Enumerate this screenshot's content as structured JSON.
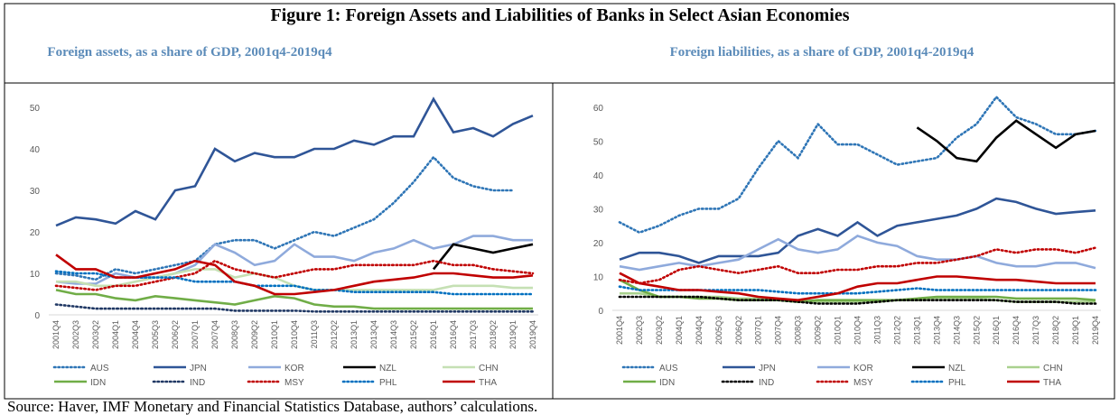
{
  "title": "Figure 1: Foreign Assets and Liabilities of Banks in Select Asian Economies",
  "source": "Source: Haver, IMF Monetary and Financial Statistics Database, authors’ calculations.",
  "chart_data": [
    {
      "type": "line",
      "title": "Foreign assets, as a share of GDP, 2001q4-2019q4",
      "categories": [
        "2001Q4",
        "2002Q3",
        "2003Q2",
        "2004Q1",
        "2004Q4",
        "2005Q3",
        "2006Q2",
        "2007Q1",
        "2007Q4",
        "2008Q3",
        "2009Q2",
        "2010Q1",
        "2010Q4",
        "2011Q3",
        "2012Q2",
        "2013Q1",
        "2013Q4",
        "2014Q3",
        "2015Q2",
        "2016Q1",
        "2016Q4",
        "2017Q3",
        "2018Q2",
        "2019Q1",
        "2019Q4"
      ],
      "ylim": [
        0,
        55
      ],
      "yticks": [
        0,
        10,
        20,
        30,
        40,
        50
      ],
      "series": [
        {
          "name": "AUS",
          "color": "#2e75b6",
          "style": "dotted",
          "values": [
            10,
            9.5,
            8.5,
            11,
            10,
            11,
            12,
            13,
            17,
            18,
            18,
            16,
            18,
            20,
            19,
            21,
            23,
            27,
            32,
            38,
            33,
            31,
            30,
            30,
            null
          ]
        },
        {
          "name": "JPN",
          "color": "#2f5597",
          "style": "solid",
          "values": [
            21.5,
            23.5,
            23,
            22,
            25,
            23,
            30,
            31,
            40,
            37,
            39,
            38,
            38,
            40,
            40,
            42,
            41,
            43,
            43,
            52,
            44,
            45,
            43,
            46,
            48
          ]
        },
        {
          "name": "KOR",
          "color": "#8faadc",
          "style": "solid",
          "values": [
            8,
            7.5,
            7.5,
            10,
            9,
            9,
            10,
            12,
            17,
            15,
            12,
            13,
            17,
            14,
            14,
            13,
            15,
            16,
            18,
            16,
            17,
            19,
            19,
            18,
            18
          ]
        },
        {
          "name": "NZL",
          "color": "#000000",
          "style": "solid",
          "values": [
            null,
            null,
            null,
            null,
            null,
            null,
            null,
            null,
            null,
            null,
            null,
            null,
            null,
            null,
            null,
            null,
            null,
            null,
            null,
            11,
            17,
            16,
            15,
            16,
            17
          ]
        },
        {
          "name": "CHN",
          "color": "#c5e0b4",
          "style": "solid",
          "values": [
            8,
            8,
            7,
            7,
            8,
            9,
            10,
            11,
            11,
            9,
            10,
            9,
            7,
            6,
            6,
            6,
            6,
            6,
            6,
            6,
            7,
            7,
            7,
            6.5,
            6.5
          ]
        },
        {
          "name": "IDN",
          "color": "#70ad47",
          "style": "solid",
          "values": [
            6,
            5,
            5,
            4,
            3.5,
            4.5,
            4,
            3.5,
            3,
            2.5,
            3.5,
            4.5,
            4,
            2.5,
            2,
            2,
            1.5,
            1.5,
            1.5,
            1.5,
            1.5,
            1.5,
            1.5,
            1.5,
            1.5
          ]
        },
        {
          "name": "IND",
          "color": "#203864",
          "style": "dotted",
          "values": [
            2.5,
            2,
            1.5,
            1.5,
            1.5,
            1.5,
            1.5,
            1.5,
            1.5,
            1,
            1,
            1,
            1,
            0.8,
            0.8,
            0.8,
            0.8,
            0.8,
            0.8,
            0.8,
            0.8,
            0.8,
            0.8,
            0.8,
            0.8
          ]
        },
        {
          "name": "MSY",
          "color": "#c00000",
          "style": "dotted",
          "values": [
            7,
            6.5,
            6,
            7,
            7,
            8,
            9,
            10,
            13,
            11,
            10,
            9,
            10,
            11,
            11,
            12,
            12,
            12,
            12,
            13,
            12,
            12,
            11,
            10.5,
            10
          ]
        },
        {
          "name": "PHL",
          "color": "#0070c0",
          "style": "dotted",
          "values": [
            10.5,
            10,
            10,
            9,
            9,
            9,
            9,
            8,
            8,
            8,
            7,
            7,
            7,
            6,
            6,
            5.5,
            5.5,
            5.5,
            5.5,
            5.5,
            5,
            5,
            5,
            5,
            5
          ]
        },
        {
          "name": "THA",
          "color": "#c00000",
          "style": "solid",
          "values": [
            14.5,
            11,
            11,
            9,
            9,
            10,
            11,
            13,
            12,
            8,
            7,
            5,
            5,
            5.5,
            6,
            7,
            8,
            8.5,
            9,
            10,
            10,
            9.5,
            9,
            9,
            9.5
          ]
        }
      ]
    },
    {
      "type": "line",
      "title": "Foreign liabilities, as a share of GDP, 2001q4-2019q4",
      "categories": [
        "2001Q4",
        "2002Q3",
        "2003Q2",
        "2004Q1",
        "2004Q4",
        "2005Q3",
        "2006Q2",
        "2007Q1",
        "2007Q4",
        "2008Q3",
        "2009Q2",
        "2010Q1",
        "2010Q4",
        "2011Q3",
        "2012Q2",
        "2013Q1",
        "2013Q4",
        "2014Q3",
        "2015Q2",
        "2016Q1",
        "2016Q4",
        "2017Q3",
        "2018Q2",
        "2019Q1",
        "2019Q4"
      ],
      "ylim": [
        0,
        65
      ],
      "yticks": [
        0,
        10,
        20,
        30,
        40,
        50,
        60
      ],
      "series": [
        {
          "name": "AUS",
          "color": "#2e75b6",
          "style": "dotted",
          "values": [
            26,
            23,
            25,
            28,
            30,
            30,
            33,
            42,
            50,
            45,
            55,
            49,
            49,
            46,
            43,
            44,
            45,
            51,
            55,
            63,
            57,
            55,
            52,
            52,
            53
          ]
        },
        {
          "name": "JPN",
          "color": "#2f5597",
          "style": "solid",
          "values": [
            15,
            17,
            17,
            16,
            14,
            16,
            16,
            16,
            17,
            22,
            24,
            22,
            26,
            22,
            25,
            26,
            27,
            28,
            30,
            33,
            32,
            30,
            28.5,
            29,
            29.5
          ]
        },
        {
          "name": "KOR",
          "color": "#8faadc",
          "style": "solid",
          "values": [
            13,
            12,
            13,
            14,
            13,
            14,
            15,
            18,
            21,
            18,
            17,
            18,
            22,
            20,
            19,
            16,
            15,
            15,
            16,
            14,
            13,
            13,
            14,
            14,
            12.5
          ]
        },
        {
          "name": "NZL",
          "color": "#000000",
          "style": "solid",
          "values": [
            null,
            null,
            null,
            null,
            null,
            null,
            null,
            null,
            null,
            null,
            null,
            null,
            null,
            null,
            null,
            54,
            50,
            45,
            44,
            51,
            56,
            52,
            48,
            52,
            53
          ]
        },
        {
          "name": "CHN",
          "color": "#a9d18e",
          "style": "solid",
          "values": [
            5,
            5,
            4,
            4,
            4,
            4,
            3.5,
            3.5,
            3,
            2.5,
            2.5,
            2.5,
            2.5,
            2.5,
            3,
            3,
            3.5,
            3.5,
            3.5,
            3,
            2.5,
            2.5,
            2.5,
            2.5,
            2.5
          ]
        },
        {
          "name": "IDN",
          "color": "#70ad47",
          "style": "solid",
          "values": [
            9,
            6,
            4,
            4,
            3.5,
            3.5,
            3,
            3,
            3,
            2.5,
            3,
            3,
            3,
            3,
            3,
            3.5,
            4,
            4,
            4,
            4,
            3.5,
            3.5,
            3.5,
            3.5,
            3
          ]
        },
        {
          "name": "IND",
          "color": "#000000",
          "style": "dotted",
          "values": [
            4,
            4,
            4,
            4,
            4,
            3.5,
            3,
            3,
            3,
            2.5,
            2,
            2,
            2,
            2.5,
            3,
            3,
            3,
            3,
            3,
            3,
            2.5,
            2.5,
            2.5,
            2,
            2
          ]
        },
        {
          "name": "MSY",
          "color": "#c00000",
          "style": "dotted",
          "values": [
            9,
            8,
            9,
            12,
            13,
            12,
            11,
            12,
            13,
            11,
            11,
            12,
            12,
            13,
            13,
            14,
            14,
            15,
            16,
            18,
            17,
            18,
            18,
            17,
            18.5
          ]
        },
        {
          "name": "PHL",
          "color": "#0070c0",
          "style": "dotted",
          "values": [
            7,
            6,
            6,
            6,
            6,
            6,
            6,
            6,
            5.5,
            5,
            5,
            5,
            5,
            5.5,
            6,
            6.5,
            6,
            6,
            6,
            6,
            6,
            6,
            6,
            6,
            6
          ]
        },
        {
          "name": "THA",
          "color": "#c00000",
          "style": "solid",
          "values": [
            11,
            8,
            7,
            6,
            6,
            5.5,
            5,
            4,
            3.5,
            3,
            4,
            5,
            7,
            8,
            8,
            9,
            10,
            10,
            9.5,
            9,
            9,
            8.5,
            8,
            8,
            8
          ]
        }
      ]
    }
  ]
}
